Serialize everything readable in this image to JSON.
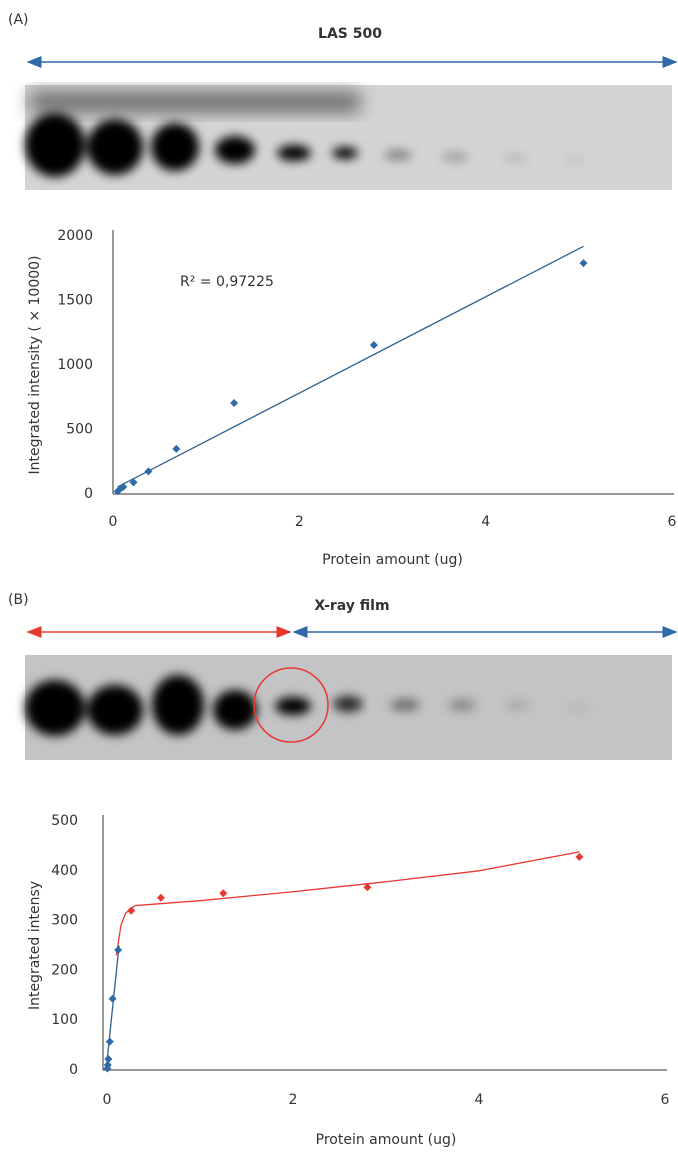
{
  "panels": [
    {
      "label": "(A)",
      "gel_title": "LAS 500"
    },
    {
      "label": "(B)",
      "gel_title": "X-ray film"
    }
  ],
  "chart_data": [
    {
      "type": "scatter",
      "x_label": "Protein amount (ug)",
      "y_label": "Integrated intensity ( × 10000)",
      "annotation": "R² = 0,97225",
      "xlim": [
        0,
        6
      ],
      "ylim": [
        0,
        2000
      ],
      "xticks": [
        0,
        2,
        4,
        6
      ],
      "yticks": [
        0,
        500,
        1000,
        1500,
        2000
      ],
      "series": [
        {
          "color": "#2f6aa8",
          "x": [
            5.05,
            2.8,
            1.3,
            0.68,
            0.38,
            0.22,
            0.11,
            0.07,
            0.05
          ],
          "values": [
            1790,
            1155,
            705,
            350,
            175,
            90,
            55,
            35,
            20
          ]
        }
      ],
      "fits": [
        {
          "color": "#2e5f8a",
          "x": [
            0.05,
            5.05
          ],
          "y": [
            55,
            1920
          ]
        }
      ]
    },
    {
      "type": "scatter",
      "x_label": "Protein amount (ug)",
      "y_label": "Integrated intensy",
      "xlim": [
        0,
        6
      ],
      "ylim": [
        0,
        500
      ],
      "xticks": [
        0,
        2,
        4,
        6
      ],
      "yticks": [
        0,
        100,
        200,
        300,
        400,
        500
      ],
      "series": [
        {
          "color": "#e8382f",
          "x": [
            5.08,
            2.8,
            1.25,
            0.58,
            0.26
          ],
          "values": [
            428,
            367,
            355,
            346,
            320
          ]
        },
        {
          "color": "#2f6aa8",
          "x": [
            0.12,
            0.06,
            0.03,
            0.015,
            0.008,
            0.004
          ],
          "values": [
            241,
            143,
            57,
            22,
            10,
            3
          ]
        }
      ],
      "fits": [
        {
          "color": "#e8382f",
          "x": [
            0.1,
            0.15,
            0.2,
            0.3,
            0.5,
            1,
            2,
            3,
            4,
            5.08
          ],
          "y": [
            230,
            290,
            315,
            330,
            333,
            340,
            358,
            378,
            400,
            438
          ]
        },
        {
          "color": "#2e5f8a",
          "x": [
            -0.01,
            0.13
          ],
          "y": [
            0,
            250
          ]
        }
      ]
    }
  ]
}
